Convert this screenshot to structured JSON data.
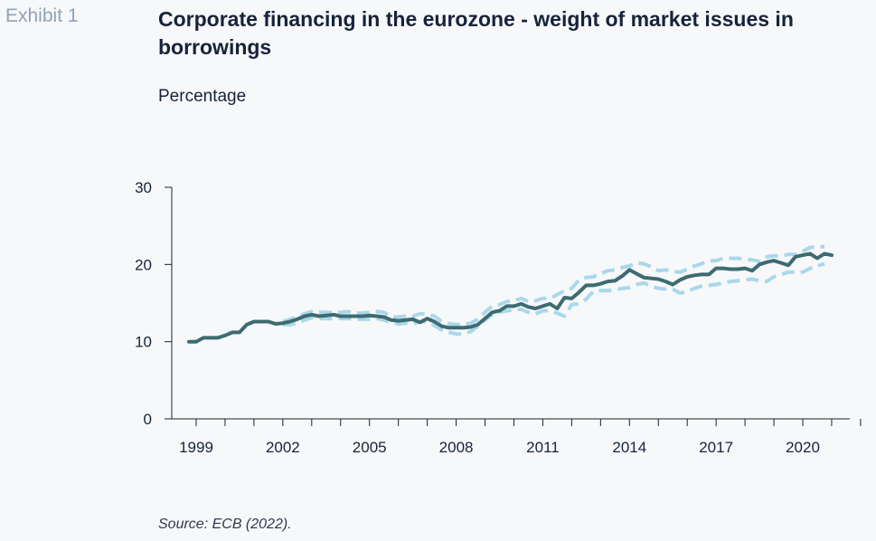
{
  "header": {
    "exhibit_label": "Exhibit 1",
    "title": "Corporate financing in the eurozone - weight of market issues in borrowings",
    "subtitle": "Percentage"
  },
  "footer": {
    "source": "Source: ECB (2022)."
  },
  "colors": {
    "main_line": "#3d6b72",
    "band_lines": "#a9d8ea",
    "axis": "#16233a"
  },
  "chart_data": {
    "type": "line",
    "title": "Corporate financing in the eurozone - weight of market issues in borrowings",
    "ylabel": "Percentage",
    "xlabel": "",
    "xlim": [
      1999,
      2022
    ],
    "ylim": [
      0,
      30
    ],
    "x_ticks": [
      "1999",
      "2002",
      "2005",
      "2008",
      "2011",
      "2014",
      "2017",
      "2020"
    ],
    "y_ticks": [
      "0",
      "10",
      "20",
      "30"
    ],
    "grid": false,
    "legend": "none",
    "series": [
      {
        "style": "solid",
        "x": [
          1998.75,
          1999.0,
          1999.25,
          1999.5,
          1999.75,
          2000.0,
          2000.25,
          2000.5,
          2000.75,
          2001.0,
          2001.25,
          2001.5,
          2001.75,
          2002.0,
          2002.25,
          2002.5,
          2002.75,
          2003.0,
          2003.25,
          2003.5,
          2003.75,
          2004.0,
          2004.25,
          2004.5,
          2004.75,
          2005.0,
          2005.25,
          2005.5,
          2005.75,
          2006.0,
          2006.25,
          2006.5,
          2006.75,
          2007.0,
          2007.25,
          2007.5,
          2007.75,
          2008.0,
          2008.25,
          2008.5,
          2008.75,
          2009.0,
          2009.25,
          2009.5,
          2009.75,
          2010.0,
          2010.25,
          2010.5,
          2010.75,
          2011.0,
          2011.25,
          2011.5,
          2011.75,
          2012.0,
          2012.25,
          2012.5,
          2012.75,
          2013.0,
          2013.25,
          2013.5,
          2013.75,
          2014.0,
          2014.25,
          2014.5,
          2014.75,
          2015.0,
          2015.25,
          2015.5,
          2015.75,
          2016.0,
          2016.25,
          2016.5,
          2016.75,
          2017.0,
          2017.25,
          2017.5,
          2017.75,
          2018.0,
          2018.25,
          2018.5,
          2018.75,
          2019.0,
          2019.25,
          2019.5,
          2019.75,
          2020.0,
          2020.25,
          2020.5,
          2020.75,
          2021.0,
          2021.25,
          2021.5,
          2021.75
        ],
        "values": [
          10.0,
          10.0,
          10.5,
          10.5,
          10.5,
          10.8,
          11.2,
          11.2,
          12.2,
          12.6,
          12.6,
          12.6,
          12.3,
          12.4,
          12.6,
          12.9,
          13.3,
          13.5,
          13.3,
          13.4,
          13.5,
          13.3,
          13.3,
          13.3,
          13.3,
          13.4,
          13.3,
          13.2,
          12.8,
          12.7,
          12.8,
          12.9,
          12.5,
          13.0,
          12.6,
          12.0,
          11.8,
          11.8,
          11.8,
          11.9,
          12.2,
          13.0,
          13.8,
          14.0,
          14.6,
          14.6,
          14.9,
          14.5,
          14.3,
          14.6,
          14.9,
          14.3,
          15.7,
          15.6,
          16.4,
          17.3,
          17.3,
          17.5,
          17.8,
          17.9,
          18.5,
          19.3,
          18.8,
          18.3,
          18.2,
          18.1,
          17.8,
          17.4,
          18.0,
          18.4,
          18.6,
          18.7,
          18.7,
          19.5,
          19.5,
          19.4,
          19.4,
          19.5,
          19.2,
          20.0,
          20.3,
          20.5,
          20.2,
          19.9,
          21.0,
          21.2,
          21.4,
          20.8,
          21.4,
          21.2,
          null,
          null,
          null
        ]
      },
      {
        "style": "dashed",
        "x": [
          2002.0,
          2002.25,
          2002.5,
          2002.75,
          2003.0,
          2003.25,
          2003.5,
          2003.75,
          2004.0,
          2004.25,
          2004.5,
          2004.75,
          2005.0,
          2005.25,
          2005.5,
          2005.75,
          2006.0,
          2006.25,
          2006.5,
          2006.75,
          2007.0,
          2007.25,
          2007.5,
          2007.75,
          2008.0,
          2008.25,
          2008.5,
          2008.75,
          2009.0,
          2009.25,
          2009.5,
          2009.75,
          2010.0,
          2010.25,
          2010.5,
          2010.75,
          2011.0,
          2011.25,
          2011.5,
          2011.75,
          2012.0,
          2012.25,
          2012.5,
          2012.75,
          2013.0,
          2013.25,
          2013.5,
          2013.75,
          2014.0,
          2014.25,
          2014.5,
          2014.75,
          2015.0,
          2015.25,
          2015.5,
          2015.75,
          2016.0,
          2016.25,
          2016.5,
          2016.75,
          2017.0,
          2017.25,
          2017.5,
          2017.75,
          2018.0,
          2018.25,
          2018.5,
          2018.75,
          2019.0,
          2019.25,
          2019.5,
          2019.75,
          2020.0,
          2020.25,
          2020.5,
          2020.75
        ],
        "values": [
          12.6,
          12.9,
          13.2,
          13.6,
          13.9,
          13.8,
          13.8,
          13.8,
          13.8,
          13.9,
          13.7,
          13.7,
          13.8,
          13.9,
          13.8,
          13.2,
          13.2,
          13.3,
          13.3,
          13.6,
          13.6,
          13.3,
          12.6,
          12.3,
          12.2,
          12.2,
          12.4,
          12.9,
          13.8,
          14.6,
          14.8,
          15.2,
          15.3,
          15.6,
          15.2,
          15.3,
          15.6,
          15.6,
          16.1,
          16.6,
          16.9,
          18.0,
          18.3,
          18.4,
          18.8,
          19.2,
          19.3,
          19.6,
          19.8,
          20.2,
          20.1,
          19.7,
          19.2,
          19.3,
          19.1,
          19.0,
          19.4,
          19.8,
          20.1,
          20.5,
          20.5,
          20.8,
          20.8,
          20.8,
          20.7,
          20.6,
          20.4,
          21.0,
          21.1,
          21.1,
          21.3,
          21.3,
          21.7,
          22.2,
          22.3,
          22.3
        ]
      },
      {
        "style": "dashed",
        "x": [
          2002.0,
          2002.25,
          2002.5,
          2002.75,
          2003.0,
          2003.25,
          2003.5,
          2003.75,
          2004.0,
          2004.25,
          2004.5,
          2004.75,
          2005.0,
          2005.25,
          2005.5,
          2005.75,
          2006.0,
          2006.25,
          2006.5,
          2006.75,
          2007.0,
          2007.25,
          2007.5,
          2007.75,
          2008.0,
          2008.25,
          2008.5,
          2008.75,
          2009.0,
          2009.25,
          2009.5,
          2009.75,
          2010.0,
          2010.25,
          2010.5,
          2010.75,
          2011.0,
          2011.25,
          2011.5,
          2011.75,
          2012.0,
          2012.25,
          2012.5,
          2012.75,
          2013.0,
          2013.25,
          2013.5,
          2013.75,
          2014.0,
          2014.25,
          2014.5,
          2014.75,
          2015.0,
          2015.25,
          2015.5,
          2015.75,
          2016.0,
          2016.25,
          2016.5,
          2016.75,
          2017.0,
          2017.25,
          2017.5,
          2017.75,
          2018.0,
          2018.25,
          2018.5,
          2018.75,
          2019.0,
          2019.25,
          2019.5,
          2019.75,
          2020.0,
          2020.25,
          2020.5,
          2020.75
        ],
        "values": [
          12.2,
          12.2,
          12.4,
          12.8,
          13.1,
          13.0,
          13.0,
          13.0,
          13.0,
          13.0,
          12.9,
          12.9,
          12.9,
          13.0,
          12.8,
          12.5,
          12.3,
          12.4,
          12.3,
          12.6,
          12.6,
          12.1,
          11.5,
          11.2,
          11.0,
          11.0,
          11.3,
          12.0,
          12.8,
          13.5,
          13.8,
          14.0,
          14.1,
          14.2,
          13.8,
          13.6,
          14.0,
          14.0,
          13.7,
          13.3,
          14.8,
          14.9,
          15.5,
          16.5,
          16.6,
          16.6,
          16.7,
          16.9,
          17.0,
          17.4,
          17.6,
          17.2,
          16.9,
          16.8,
          16.8,
          16.3,
          16.5,
          16.9,
          17.2,
          17.3,
          17.4,
          17.6,
          17.8,
          17.9,
          18.0,
          18.1,
          17.9,
          17.8,
          18.4,
          18.7,
          19.0,
          19.0,
          19.0,
          19.5,
          19.8,
          20.1
        ]
      }
    ]
  }
}
